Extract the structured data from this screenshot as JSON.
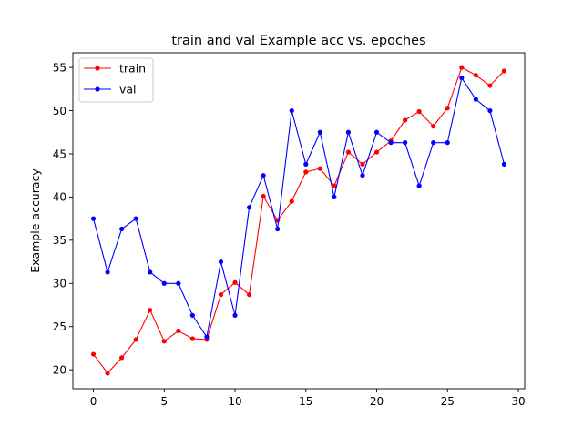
{
  "chart_data": {
    "type": "line",
    "title": "train and val Example acc vs. epoches",
    "xlabel": "",
    "ylabel": "Example accuracy",
    "xlim": [
      -1.45,
      30.45
    ],
    "ylim": [
      17.8,
      56.7
    ],
    "xticks": [
      0,
      5,
      10,
      15,
      20,
      25,
      30
    ],
    "yticks": [
      20,
      25,
      30,
      35,
      40,
      45,
      50,
      55
    ],
    "grid": false,
    "legend_position": "top-left",
    "x": [
      0,
      1,
      2,
      3,
      4,
      5,
      6,
      7,
      8,
      9,
      10,
      11,
      12,
      13,
      14,
      15,
      16,
      17,
      18,
      19,
      20,
      21,
      22,
      23,
      24,
      25,
      26,
      27,
      28,
      29
    ],
    "series": [
      {
        "name": "train",
        "color": "#ff0000",
        "marker": "circle",
        "values": [
          21.8,
          19.6,
          21.4,
          23.5,
          26.9,
          23.3,
          24.5,
          23.6,
          23.5,
          28.7,
          30.1,
          28.7,
          40.1,
          37.3,
          39.5,
          42.9,
          43.3,
          41.3,
          45.2,
          43.8,
          45.2,
          46.5,
          48.9,
          49.9,
          48.2,
          50.3,
          55.0,
          54.1,
          52.9,
          54.6
        ]
      },
      {
        "name": "val",
        "color": "#0000ff",
        "marker": "circle",
        "values": [
          37.5,
          31.3,
          36.3,
          37.5,
          31.3,
          30.0,
          30.0,
          26.3,
          23.8,
          32.5,
          26.3,
          38.8,
          42.5,
          36.3,
          50.0,
          43.8,
          47.5,
          40.0,
          47.5,
          42.5,
          47.5,
          46.3,
          46.3,
          41.3,
          46.3,
          46.3,
          53.8,
          51.3,
          50.0,
          43.8
        ]
      }
    ]
  }
}
